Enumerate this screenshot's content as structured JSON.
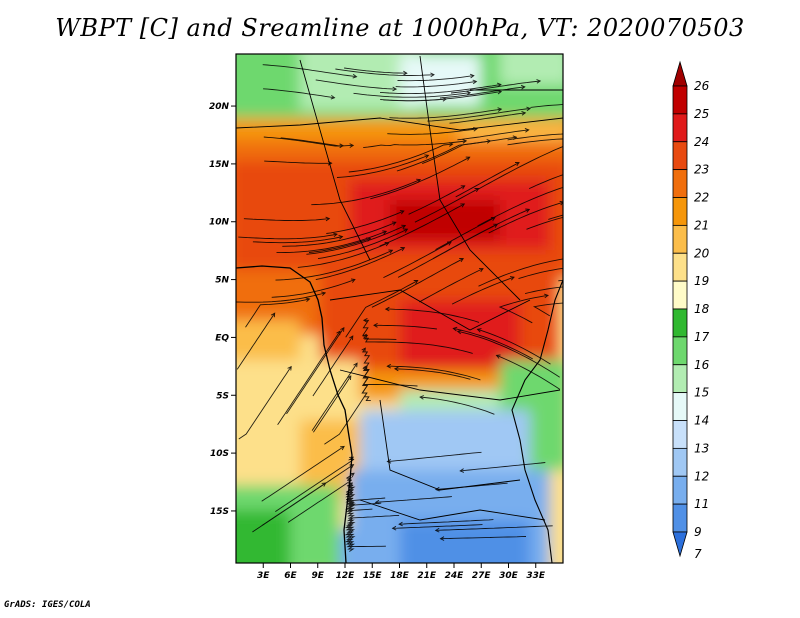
{
  "title": "WBPT [C] and Sreamline at 1000hPa, VT: 2020070503",
  "credit": "GrADS: IGES/COLA",
  "map": {
    "lat_range": [
      -19.5,
      24.5
    ],
    "lon_range": [
      0,
      36
    ],
    "lat_ticks": [
      {
        "value": 20,
        "label": "20N"
      },
      {
        "value": 15,
        "label": "15N"
      },
      {
        "value": 10,
        "label": "10N"
      },
      {
        "value": 5,
        "label": "5N"
      },
      {
        "value": 0,
        "label": "EQ"
      },
      {
        "value": -5,
        "label": "5S"
      },
      {
        "value": -10,
        "label": "10S"
      },
      {
        "value": -15,
        "label": "15S"
      }
    ],
    "lon_ticks": [
      {
        "value": 3,
        "label": "3E"
      },
      {
        "value": 6,
        "label": "6E"
      },
      {
        "value": 9,
        "label": "9E"
      },
      {
        "value": 12,
        "label": "12E"
      },
      {
        "value": 15,
        "label": "15E"
      },
      {
        "value": 18,
        "label": "18E"
      },
      {
        "value": 21,
        "label": "21E"
      },
      {
        "value": 24,
        "label": "24E"
      },
      {
        "value": 27,
        "label": "27E"
      },
      {
        "value": 30,
        "label": "30E"
      },
      {
        "value": 33,
        "label": "33E"
      }
    ]
  },
  "colorbar": {
    "levels": [
      "26",
      "25",
      "24",
      "23",
      "22",
      "21",
      "20",
      "19",
      "18",
      "17",
      "16",
      "15",
      "14",
      "13",
      "12",
      "11",
      "9",
      "7"
    ],
    "colors": [
      "#a00000",
      "#c00000",
      "#e01a1a",
      "#e84a10",
      "#f06e0c",
      "#f5960a",
      "#fbbd4a",
      "#fde08a",
      "#fffbc8",
      "#30b830",
      "#6ed86e",
      "#b2ecb2",
      "#e6f9f8",
      "#c8e0fa",
      "#a0c8f4",
      "#78aeee",
      "#5090e6",
      "#2c70dc"
    ]
  }
}
